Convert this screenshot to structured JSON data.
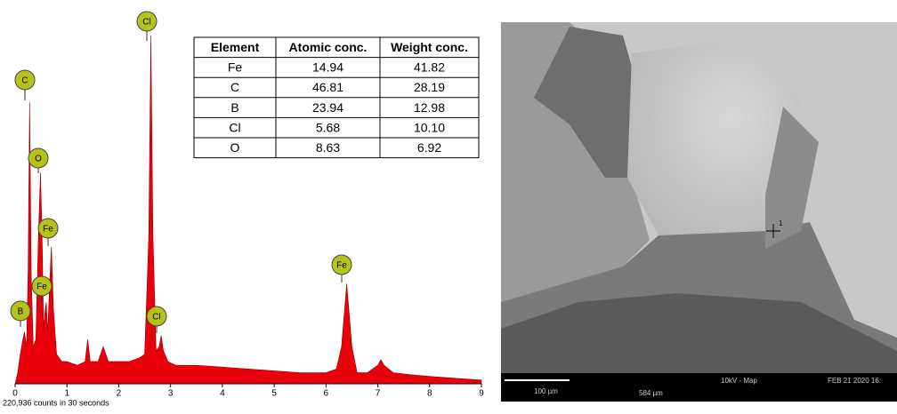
{
  "chart_data": {
    "type": "area",
    "color": "#e8000b",
    "xlim": [
      0,
      9
    ],
    "ylim": [
      0,
      100
    ],
    "xticks": [
      0,
      1,
      2,
      3,
      4,
      5,
      6,
      7,
      8,
      9
    ],
    "x": [
      0,
      0.05,
      0.1,
      0.15,
      0.18,
      0.22,
      0.25,
      0.28,
      0.31,
      0.35,
      0.4,
      0.45,
      0.49,
      0.52,
      0.55,
      0.58,
      0.6,
      0.63,
      0.66,
      0.7,
      0.74,
      0.8,
      0.9,
      1.0,
      1.2,
      1.35,
      1.4,
      1.45,
      1.6,
      1.7,
      1.8,
      2.0,
      2.2,
      2.4,
      2.5,
      2.58,
      2.62,
      2.66,
      2.72,
      2.78,
      2.82,
      2.86,
      2.95,
      3.1,
      3.5,
      4.0,
      4.5,
      5.0,
      5.5,
      6.0,
      6.2,
      6.3,
      6.4,
      6.5,
      6.6,
      6.8,
      7.0,
      7.06,
      7.12,
      7.3,
      7.6,
      8.0,
      8.5,
      9.0
    ],
    "values": [
      0,
      3,
      8,
      12,
      14,
      10,
      30,
      76,
      30,
      10,
      12,
      40,
      57,
      40,
      15,
      20,
      22,
      14,
      25,
      37,
      20,
      8,
      6,
      6,
      5,
      6,
      12,
      6,
      6,
      10,
      6,
      6,
      6,
      7,
      8,
      40,
      94,
      40,
      9,
      10,
      13,
      9,
      6,
      5,
      5,
      4.5,
      4,
      3.5,
      3,
      3,
      4,
      10,
      27,
      10,
      3,
      3,
      5,
      6.5,
      5,
      3,
      2.5,
      2,
      1.5,
      1
    ],
    "annotations": [
      "Cl",
      "C",
      "O",
      "Fe",
      "Fe",
      "B",
      "Cl",
      "Fe"
    ],
    "caption": "220,936 counts in 30 seconds"
  },
  "table": {
    "header": [
      "Element",
      "Atomic conc.",
      "Weight conc."
    ],
    "rows": [
      [
        "Fe",
        "14.94",
        "41.82"
      ],
      [
        "C",
        "46.81",
        "28.19"
      ],
      [
        "B",
        "23.94",
        "12.98"
      ],
      [
        "Cl",
        "5.68",
        "10.10"
      ],
      [
        "O",
        "8.63",
        "6.92"
      ]
    ]
  },
  "image": {
    "scale": "100 µm",
    "field": "584 µm",
    "mode": "10kV - Map",
    "date": "FEB 21 2020 16:",
    "point": "1"
  }
}
